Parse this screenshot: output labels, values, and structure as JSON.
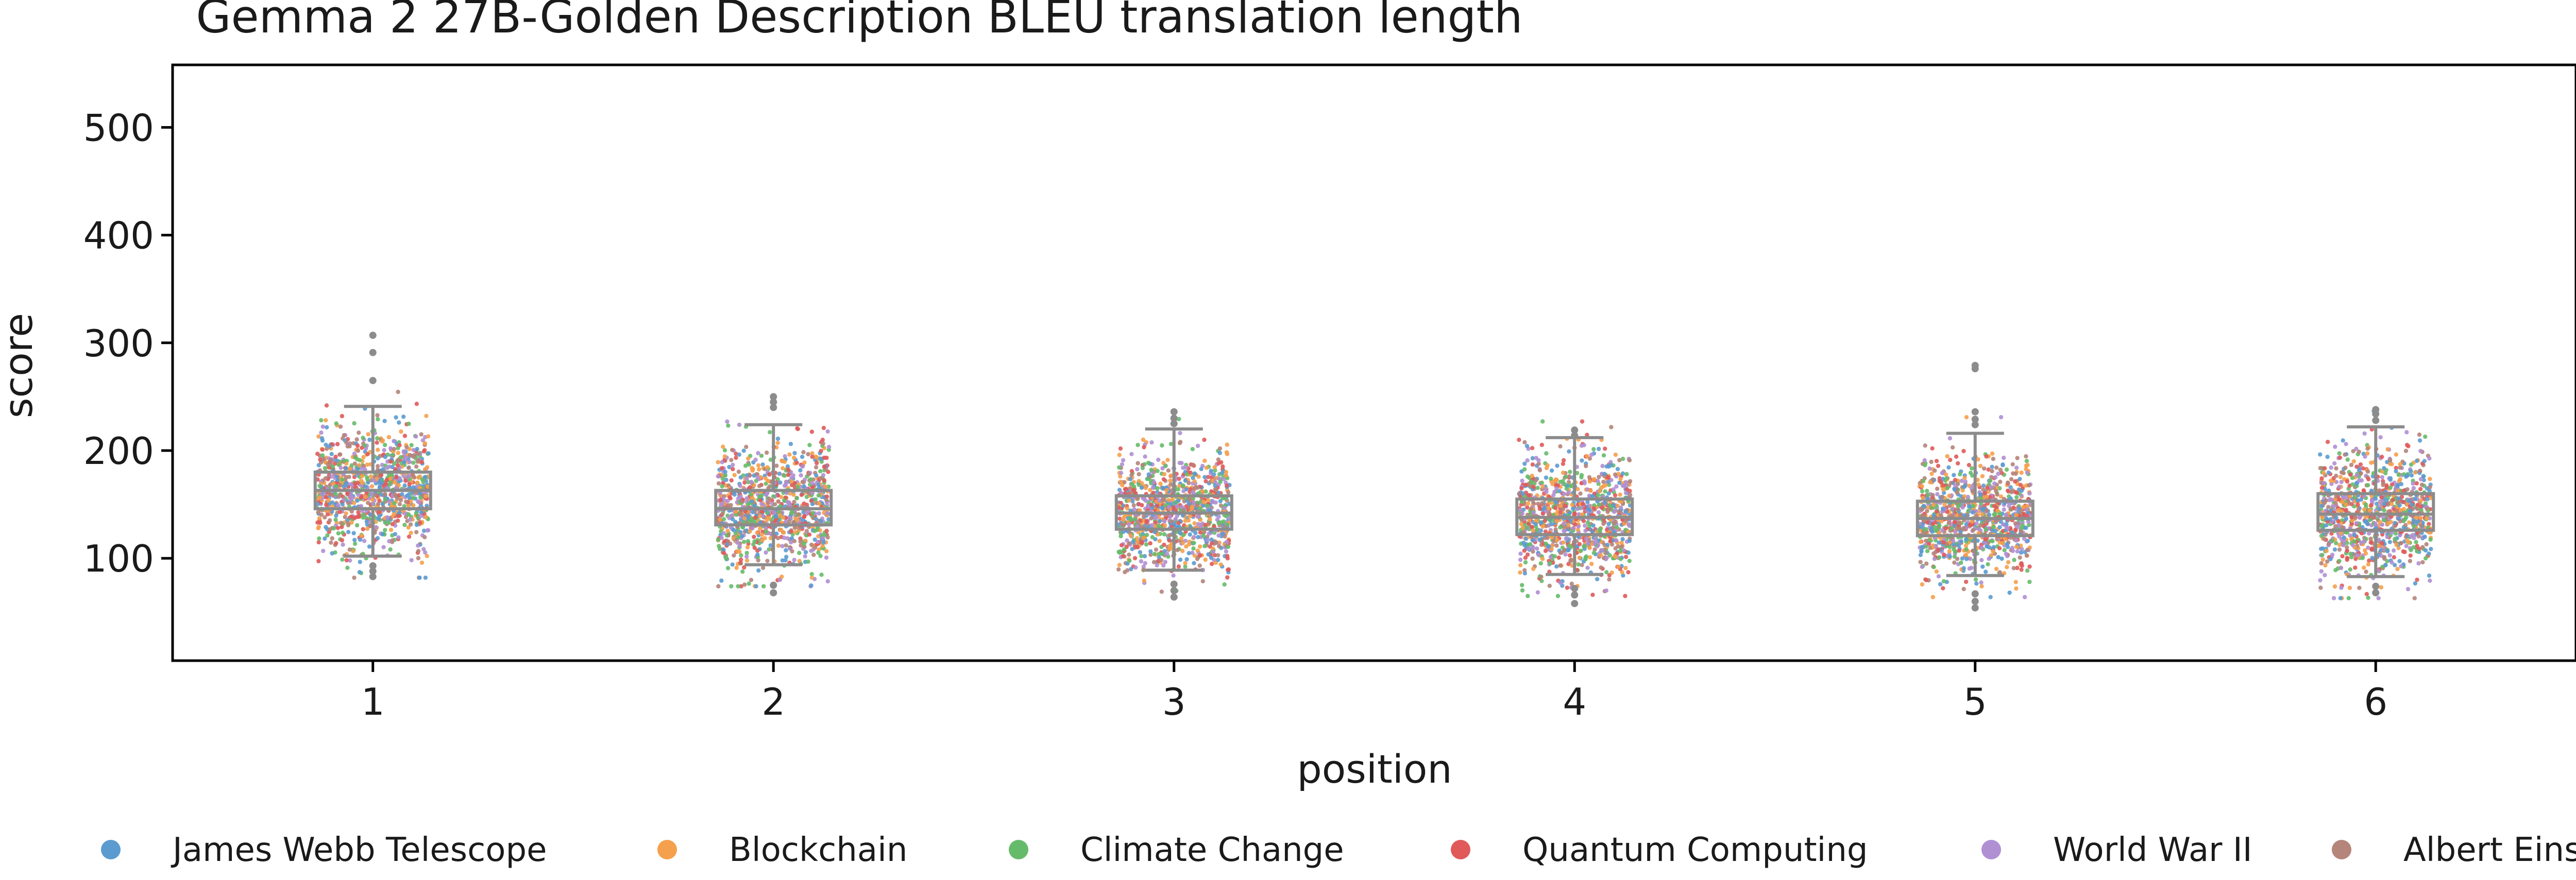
{
  "chart_data": {
    "type": "box-strip",
    "title": "Gemma 2 27B-Golden Description BLEU translation length",
    "xlabel": "position",
    "ylabel": "score",
    "categories": [
      "1",
      "2",
      "3",
      "4",
      "5",
      "6"
    ],
    "ylim": [
      5,
      558
    ],
    "yticks": [
      100,
      200,
      300,
      400,
      500
    ],
    "grid": false,
    "legend_position": "bottom",
    "series": [
      {
        "name": "James Webb Telescope",
        "color": "#5b9bd0"
      },
      {
        "name": "Blockchain",
        "color": "#f5a04c"
      },
      {
        "name": "Climate Change",
        "color": "#66bb6a"
      },
      {
        "name": "Quantum Computing",
        "color": "#e05a5a"
      },
      {
        "name": "World War II",
        "color": "#b08fd3"
      },
      {
        "name": "Albert Einstein",
        "color": "#b5847a"
      }
    ],
    "boxes": [
      {
        "position": "1",
        "whisker_low": 102,
        "q1": 146,
        "median": 163,
        "q3": 180,
        "whisker_high": 241,
        "outliers": [
          83,
          88,
          93,
          265,
          291,
          307
        ]
      },
      {
        "position": "2",
        "whisker_low": 94,
        "q1": 131,
        "median": 146,
        "q3": 163,
        "whisker_high": 224,
        "outliers": [
          68,
          75,
          240,
          245,
          250
        ]
      },
      {
        "position": "3",
        "whisker_low": 89,
        "q1": 127,
        "median": 142,
        "q3": 158,
        "whisker_high": 220,
        "outliers": [
          64,
          70,
          76,
          225,
          230,
          236
        ]
      },
      {
        "position": "4",
        "whisker_low": 85,
        "q1": 122,
        "median": 138,
        "q3": 155,
        "whisker_high": 212,
        "outliers": [
          58,
          66,
          72,
          214,
          219
        ]
      },
      {
        "position": "5",
        "whisker_low": 84,
        "q1": 121,
        "median": 137,
        "q3": 153,
        "whisker_high": 216,
        "outliers": [
          54,
          60,
          67,
          224,
          229,
          236,
          276,
          279
        ]
      },
      {
        "position": "6",
        "whisker_low": 83,
        "q1": 126,
        "median": 141,
        "q3": 160,
        "whisker_high": 222,
        "outliers": [
          68,
          74,
          228,
          234,
          238
        ]
      }
    ],
    "points_per_position": 1000
  }
}
